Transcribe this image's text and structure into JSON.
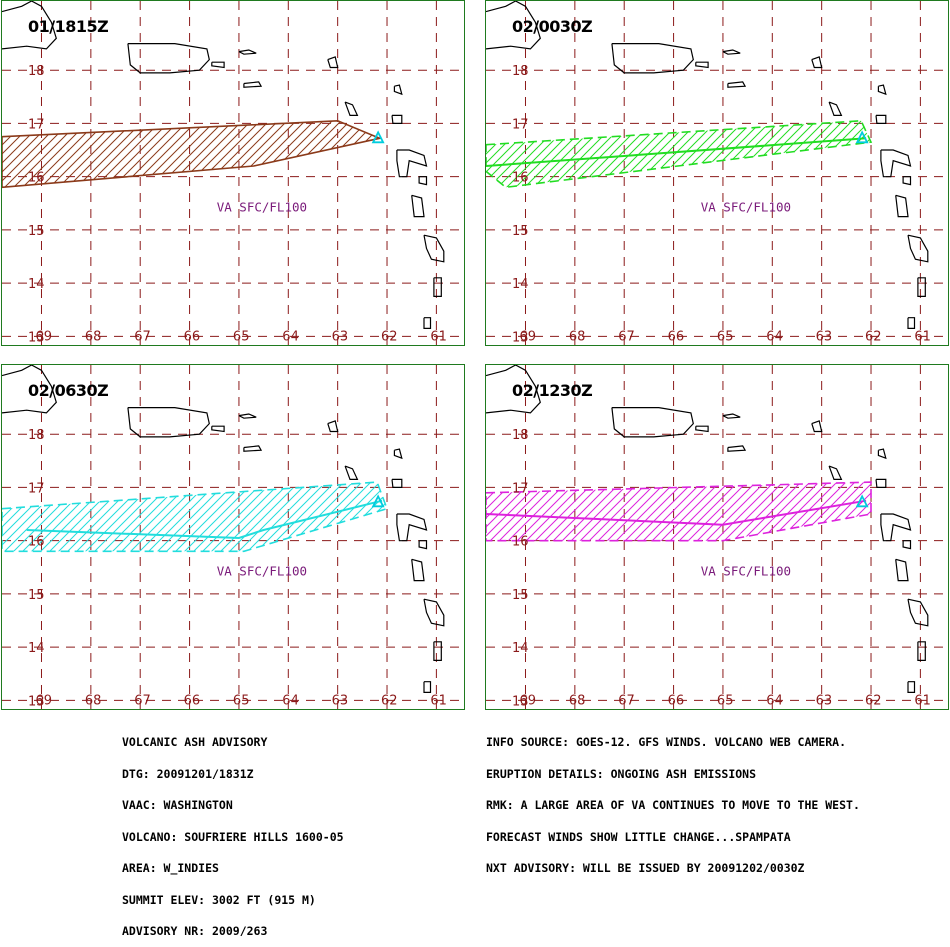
{
  "map": {
    "lon_range": [
      -69.8,
      -60.4
    ],
    "lat_range": [
      12.8,
      19.3
    ],
    "grid_lons": [
      -69,
      -68,
      -67,
      -66,
      -65,
      -64,
      -63,
      -62,
      -61
    ],
    "grid_lats": [
      13,
      14,
      15,
      16,
      17,
      18
    ],
    "lon_labels": [
      "69",
      "68",
      "67",
      "66",
      "65",
      "64",
      "63",
      "62",
      "61"
    ],
    "lat_labels": [
      "13",
      "14",
      "15",
      "16",
      "17",
      "18"
    ],
    "grid_color": "#8b1a1a",
    "coast_color": "#000000",
    "volcano_color": "#00ccdd"
  },
  "volcano": {
    "name": "SOUFRIERE HILLS",
    "lon": -62.18,
    "lat": 16.72
  },
  "panels": [
    {
      "title": "01/1815Z",
      "label": "VA  SFC/FL100",
      "label_pos": {
        "lon": -65.45,
        "lat": 15.35
      },
      "color": "#8b3a1a",
      "outline": "solid",
      "polygon": [
        [
          -69.8,
          16.75
        ],
        [
          -63.0,
          17.05
        ],
        [
          -62.15,
          16.72
        ],
        [
          -64.7,
          16.2
        ],
        [
          -69.8,
          15.8
        ]
      ],
      "centerline": []
    },
    {
      "title": "02/0030Z",
      "label": "VA  SFC/FL100",
      "label_pos": {
        "lon": -65.45,
        "lat": 15.35
      },
      "color": "#22dd22",
      "outline": "dashed",
      "polygon": [
        [
          -69.8,
          16.6
        ],
        [
          -62.2,
          17.05
        ],
        [
          -62.0,
          16.65
        ],
        [
          -69.4,
          15.8
        ],
        [
          -69.8,
          16.1
        ]
      ],
      "centerline": [
        [
          -69.8,
          16.2
        ],
        [
          -62.1,
          16.72
        ]
      ]
    },
    {
      "title": "02/0630Z",
      "label": "VA  SFC/FL100",
      "label_pos": {
        "lon": -65.45,
        "lat": 15.35
      },
      "color": "#22dddd",
      "outline": "dashed",
      "polygon": [
        [
          -69.8,
          16.6
        ],
        [
          -62.2,
          17.1
        ],
        [
          -62.0,
          16.6
        ],
        [
          -64.9,
          15.8
        ],
        [
          -69.8,
          15.8
        ]
      ],
      "centerline": [
        [
          -69.3,
          16.2
        ],
        [
          -65.0,
          16.05
        ],
        [
          -64.5,
          16.2
        ],
        [
          -62.1,
          16.75
        ]
      ]
    },
    {
      "title": "02/1230Z",
      "label": "VA  SFC/FL100",
      "label_pos": {
        "lon": -65.45,
        "lat": 15.35
      },
      "color": "#dd22dd",
      "outline": "dashed",
      "polygon": [
        [
          -69.8,
          16.9
        ],
        [
          -62.0,
          17.1
        ],
        [
          -62.0,
          16.5
        ],
        [
          -65.0,
          16.0
        ],
        [
          -69.8,
          16.0
        ]
      ],
      "centerline": [
        [
          -69.8,
          16.5
        ],
        [
          -65.0,
          16.3
        ],
        [
          -62.1,
          16.75
        ]
      ]
    }
  ],
  "advisory": {
    "left_lines": [
      "VOLCANIC ASH ADVISORY",
      "DTG: 20091201/1831Z",
      "VAAC: WASHINGTON",
      "VOLCANO: SOUFRIERE HILLS 1600-05",
      "AREA: W_INDIES",
      "SUMMIT ELEV: 3002 FT (915 M)",
      "ADVISORY NR: 2009/263"
    ],
    "right_lines": [
      "INFO SOURCE: GOES-12. GFS WINDS. VOLCANO WEB CAMERA.",
      "ERUPTION DETAILS: ONGOING ASH EMISSIONS",
      "RMK: A LARGE AREA OF VA CONTINUES TO MOVE TO THE WEST.",
      "FORECAST WINDS SHOW LITTLE CHANGE...SPAMPATA",
      "NXT ADVISORY: WILL BE ISSUED BY 20091202/0030Z"
    ]
  }
}
